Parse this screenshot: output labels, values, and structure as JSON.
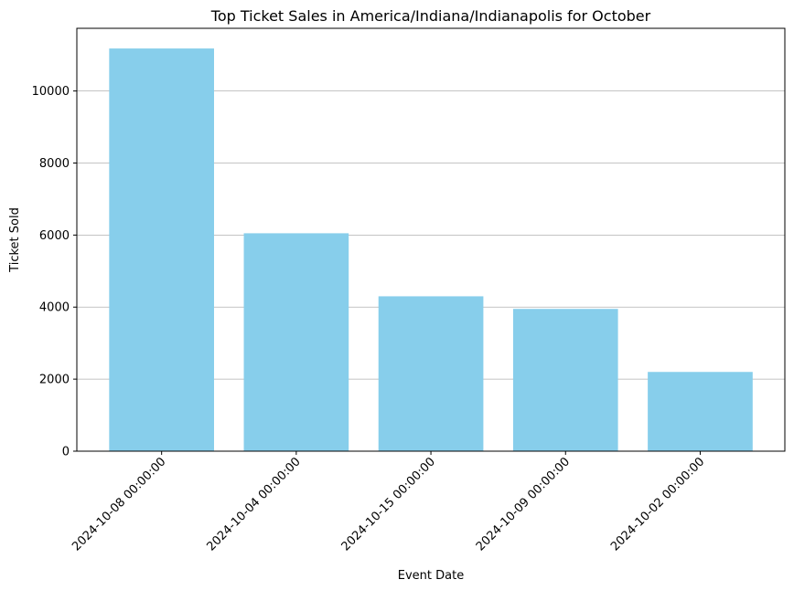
{
  "chart_data": {
    "type": "bar",
    "title": "Top Ticket Sales in America/Indiana/Indianapolis for October",
    "xlabel": "Event Date",
    "ylabel": "Ticket Sold",
    "categories": [
      "2024-10-08 00:00:00",
      "2024-10-04 00:00:00",
      "2024-10-15 00:00:00",
      "2024-10-09 00:00:00",
      "2024-10-02 00:00:00"
    ],
    "values": [
      11180,
      6050,
      4300,
      3950,
      2200
    ],
    "ylim": [
      0,
      11740
    ],
    "yticks": [
      0,
      2000,
      4000,
      6000,
      8000,
      10000
    ],
    "ytick_labels": [
      "0",
      "2000",
      "4000",
      "6000",
      "8000",
      "10000"
    ],
    "grid": "y-axis",
    "bar_color": "#87ceeb",
    "grid_color": "#b0b0b0",
    "legend": "none"
  }
}
